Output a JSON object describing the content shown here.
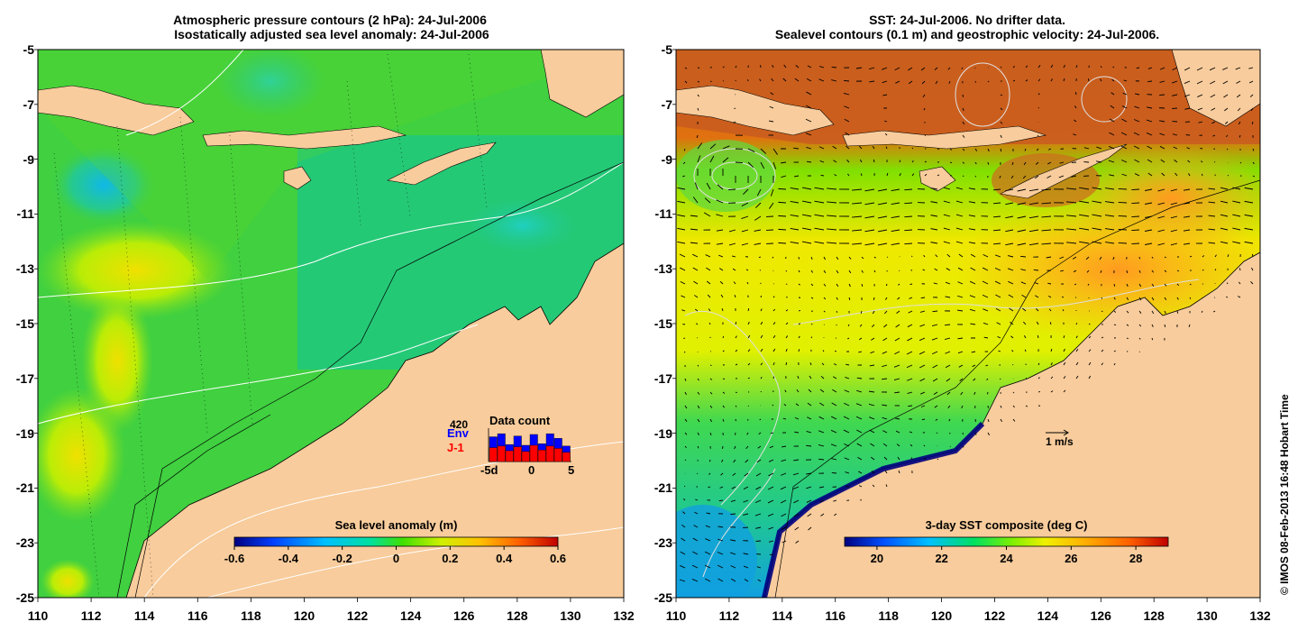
{
  "left_panel": {
    "title_line1": "Atmospheric pressure contours (2 hPa): 24-Jul-2006",
    "title_line2": " Isostatically adjusted sea level anomaly: 24-Jul-2006",
    "colorbar": {
      "title": "Sea level anomaly (m)",
      "ticks": [
        "-0.6",
        "-0.4",
        "-0.2",
        "0",
        "0.2",
        "0.4",
        "0.6"
      ],
      "range": [
        -0.6,
        0.6
      ],
      "colors": [
        "#000080",
        "#0040ff",
        "#00c0ff",
        "#00e0a0",
        "#40e000",
        "#d0f000",
        "#ffc000",
        "#ff6000",
        "#c00000"
      ]
    },
    "data_count": {
      "title": "Data count",
      "max_label": "420",
      "env_label": "Env",
      "j1_label": "J-1",
      "x_labels": [
        "-5d",
        "0",
        "5"
      ],
      "env_color": "#0000ff",
      "j1_color": "#ff0000",
      "env_counts": [
        320,
        360,
        220,
        330,
        210,
        350,
        230,
        360,
        300,
        200
      ],
      "j1_counts": [
        180,
        200,
        140,
        190,
        130,
        210,
        150,
        200,
        170,
        120
      ]
    }
  },
  "right_panel": {
    "title_line1": "SST: 24-Jul-2006. No drifter data.",
    "title_line2": "Sealevel contours (0.1 m) and geostrophic velocity: 24-Jul-2006.",
    "colorbar": {
      "title": "3-day SST composite (deg C)",
      "ticks": [
        "20",
        "22",
        "24",
        "26",
        "28"
      ],
      "range": [
        19,
        29
      ],
      "colors": [
        "#000080",
        "#0050ff",
        "#00c0ff",
        "#00e060",
        "#80f000",
        "#f0f000",
        "#ffb000",
        "#ff6000",
        "#c00000"
      ]
    },
    "velocity_scale_label": "1 m/s"
  },
  "axes": {
    "y_ticks": [
      "-5",
      "-7",
      "-9",
      "-11",
      "-13",
      "-15",
      "-17",
      "-19",
      "-21",
      "-23",
      "-25"
    ],
    "x_ticks": [
      "110",
      "112",
      "114",
      "116",
      "118",
      "120",
      "122",
      "124",
      "126",
      "128",
      "130",
      "132"
    ],
    "lon_range": [
      110,
      132
    ],
    "lat_range": [
      -25,
      -5
    ]
  },
  "credit": "© IMOS 08-Feb-2013 16:48 Hobart Time",
  "colors": {
    "land": "#f8cc9c",
    "sea_green": "#40d040",
    "sea_teal": "#20c880",
    "sst_orange": "#ff9a20",
    "sst_red": "#c86020",
    "sst_yellow": "#e8e800"
  }
}
